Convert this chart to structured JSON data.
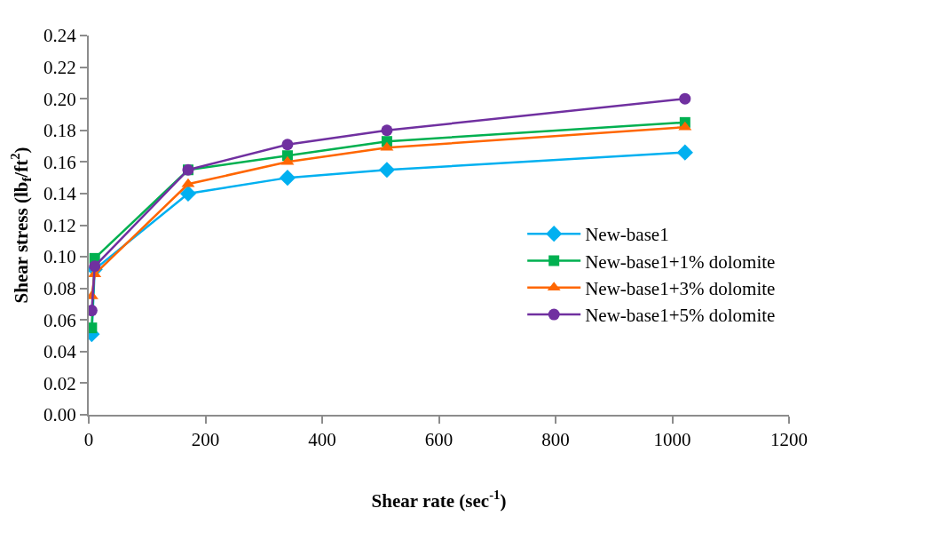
{
  "chart_data": {
    "type": "line",
    "xlabel": "Shear rate (sec$^{-1}$)",
    "ylabel": "Shear stress (lb$_{f}$/ft$^{2}$)",
    "x": [
      5.11,
      10.22,
      170.3,
      340.6,
      510.9,
      1021.8
    ],
    "xlim": [
      0,
      1200
    ],
    "xticks": [
      0,
      200,
      400,
      600,
      800,
      1000,
      1200
    ],
    "ylim": [
      0,
      0.24
    ],
    "yticks": [
      {
        "value": 0,
        "label": "0.00"
      },
      {
        "value": 0.02,
        "label": "0.02"
      },
      {
        "value": 0.04,
        "label": "0.04"
      },
      {
        "value": 0.06,
        "label": "0.06"
      },
      {
        "value": 0.08,
        "label": "0.08"
      },
      {
        "value": 0.1,
        "label": "0.10"
      },
      {
        "value": 0.12,
        "label": "0.12"
      },
      {
        "value": 0.14,
        "label": "0.14"
      },
      {
        "value": 0.16,
        "label": "0.16"
      },
      {
        "value": 0.18,
        "label": "0.18"
      },
      {
        "value": 0.2,
        "label": "0.20"
      },
      {
        "value": 0.22,
        "label": "0.22"
      },
      {
        "value": 0.24,
        "label": "0.24"
      }
    ],
    "legend": "right",
    "series": [
      {
        "name": "New-base1",
        "color": "#00b0f0",
        "marker": "diamond",
        "values": [
          0.051,
          0.092,
          0.14,
          0.15,
          0.155,
          0.166
        ]
      },
      {
        "name": "New-base1+1% dolomite",
        "color": "#00b050",
        "marker": "square",
        "values": [
          0.055,
          0.099,
          0.155,
          0.164,
          0.173,
          0.185
        ]
      },
      {
        "name": "New-base1+3% dolomite",
        "color": "#ff6600",
        "marker": "triangle",
        "values": [
          0.075,
          0.089,
          0.146,
          0.16,
          0.169,
          0.182
        ]
      },
      {
        "name": "New-base1+5% dolomite",
        "color": "#7030a0",
        "marker": "circle",
        "values": [
          0.066,
          0.094,
          0.155,
          0.171,
          0.18,
          0.2
        ]
      }
    ]
  }
}
